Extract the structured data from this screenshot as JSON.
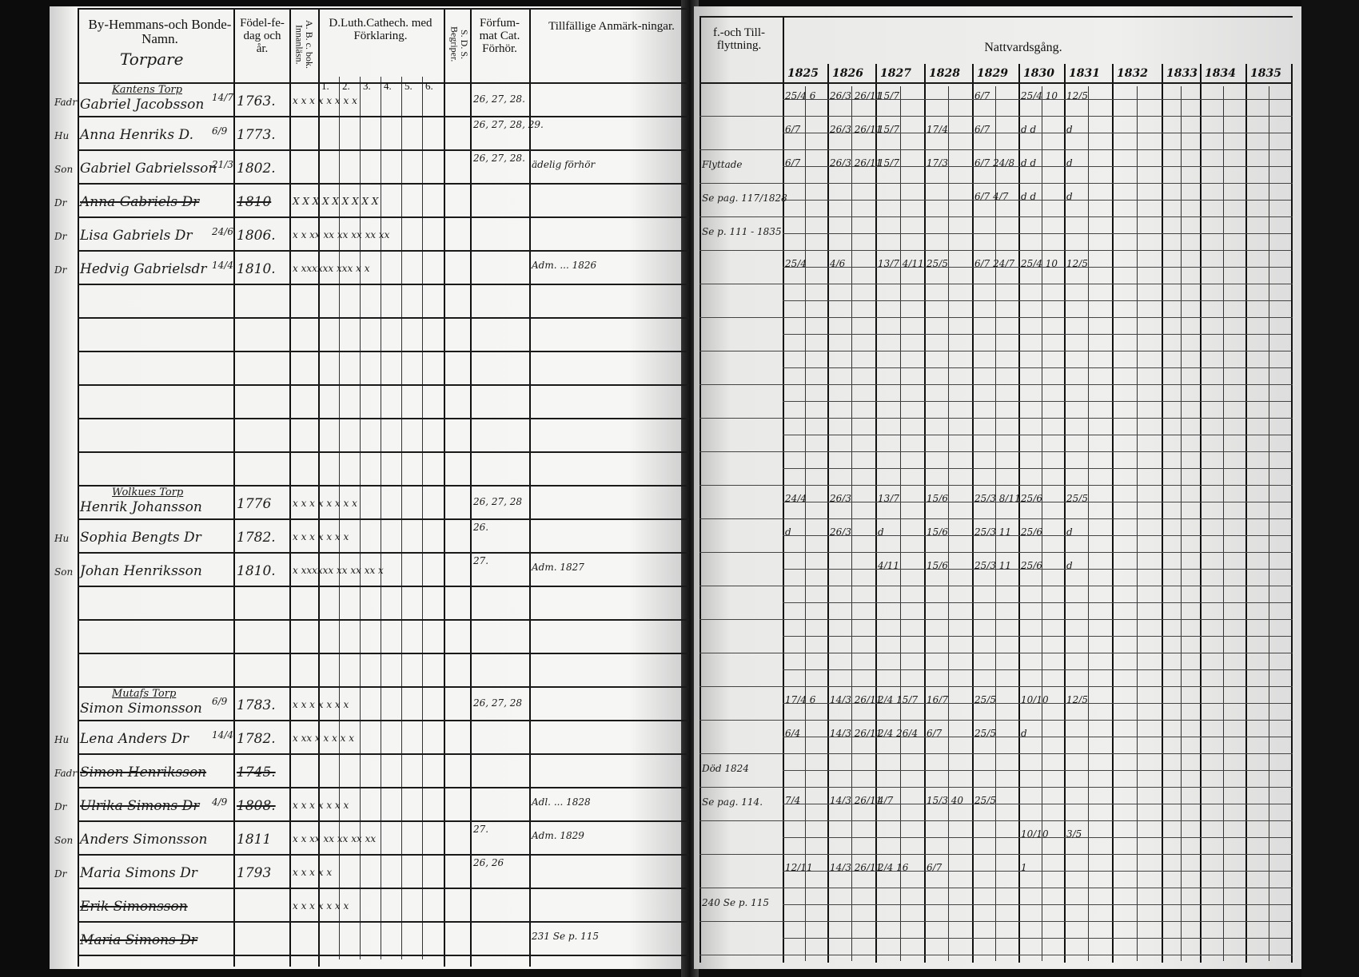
{
  "headers": {
    "name": "By-Hemmans-och Bonde-Namn.",
    "name_note": "Torpare",
    "birth": "Födel-fe-dag och år.",
    "abc": "A. B. c. bok. Innanläsn.",
    "catechism": "D.Luth.Cathech. med Förklaring.",
    "catechism_parts": [
      "1.",
      "2.",
      "3.",
      "4.",
      "5.",
      "6."
    ],
    "sds": "S. D. S. Begriper.",
    "forhor": "Förfum-mat Cat. Förhör.",
    "remarks": "Tillfällige Anmärk-ningar.",
    "moves": "f.-och Till-flyttning.",
    "communion": "Nattvardsgång."
  },
  "years": [
    "1825",
    "1826",
    "1827",
    "1828",
    "1829",
    "1830",
    "1831",
    "1832",
    "1833",
    "1834",
    "1835"
  ],
  "rows": [
    {
      "section": "Kantens Torp",
      "prefix": "Fadr",
      "name": "Gabriel Jacobsson",
      "day": "14/7",
      "year": "1763.",
      "marks": "x x  x  x  x  x  x  x",
      "forhor": "26, 27, 28.",
      "remarks": "",
      "moves": "",
      "communion": [
        "25/4 6",
        "26/3 26/11",
        "15/7",
        "",
        "6/7",
        "25/4 10",
        "12/5"
      ],
      "struck": false
    },
    {
      "section": "",
      "prefix": "Hu",
      "name": "Anna Henriks D.",
      "day": "6/9",
      "year": "1773.",
      "marks": "",
      "forhor": "26, 27, 28, 29.",
      "remarks": "",
      "moves": "",
      "communion": [
        "6/7",
        "26/3 26/11",
        "15/7",
        "17/4",
        "6/7",
        "d d",
        "d"
      ],
      "struck": false
    },
    {
      "section": "",
      "prefix": "Son",
      "name": "Gabriel Gabrielsson",
      "day": "21/3",
      "year": "1802.",
      "marks": "",
      "forhor": "26, 27, 28.",
      "remarks": "ädelig förhör",
      "moves": "Flyttade",
      "communion": [
        "6/7",
        "26/3 26/11",
        "15/7",
        "17/3",
        "6/7 24/8",
        "d d",
        "d"
      ],
      "struck": false
    },
    {
      "section": "",
      "prefix": "Dr",
      "name": "Anna Gabriels Dr",
      "day": "",
      "year": "1810",
      "marks": "X X  X X X  X X  X  X",
      "forhor": "",
      "remarks": "",
      "moves": "Se pag. 117/1828",
      "communion": [
        "",
        "",
        "",
        "",
        "6/7 4/7",
        "d d",
        "d"
      ],
      "struck": true
    },
    {
      "section": "",
      "prefix": "Dr",
      "name": "Lisa Gabriels Dr",
      "day": "24/6",
      "year": "1806.",
      "marks": "x x  xx xx xx xx xx xx",
      "forhor": "",
      "remarks": "",
      "moves": "Se p. 111 - 1835",
      "communion": [
        "",
        "",
        "",
        "",
        "",
        "",
        ""
      ],
      "struck": false
    },
    {
      "section": "",
      "prefix": "Dr",
      "name": "Hedvig Gabrielsdr",
      "day": "14/4",
      "year": "1810.",
      "marks": "x xxxxxx xxx x x",
      "forhor": "",
      "remarks": "Adm. ... 1826",
      "moves": "",
      "communion": [
        "25/4",
        "4/6",
        "13/7 4/11",
        "25/5",
        "6/7 24/7",
        "25/4 10",
        "12/5"
      ],
      "struck": false
    },
    {
      "section": "",
      "prefix": "",
      "name": "",
      "day": "",
      "year": "",
      "marks": "",
      "forhor": "",
      "remarks": "",
      "moves": "",
      "communion": [],
      "struck": false
    },
    {
      "section": "",
      "prefix": "",
      "name": "",
      "day": "",
      "year": "",
      "marks": "",
      "forhor": "",
      "remarks": "",
      "moves": "",
      "communion": [],
      "struck": false
    },
    {
      "section": "",
      "prefix": "",
      "name": "",
      "day": "",
      "year": "",
      "marks": "",
      "forhor": "",
      "remarks": "",
      "moves": "",
      "communion": [],
      "struck": false
    },
    {
      "section": "",
      "prefix": "",
      "name": "",
      "day": "",
      "year": "",
      "marks": "",
      "forhor": "",
      "remarks": "",
      "moves": "",
      "communion": [],
      "struck": false
    },
    {
      "section": "",
      "prefix": "",
      "name": "",
      "day": "",
      "year": "",
      "marks": "",
      "forhor": "",
      "remarks": "",
      "moves": "",
      "communion": [],
      "struck": false
    },
    {
      "section": "",
      "prefix": "",
      "name": "",
      "day": "",
      "year": "",
      "marks": "",
      "forhor": "",
      "remarks": "",
      "moves": "",
      "communion": [],
      "struck": false
    },
    {
      "section": "Wolkues Torp",
      "prefix": "",
      "name": "Henrik Johansson",
      "day": "",
      "year": "1776",
      "marks": "x x x  x  x  x  x  x",
      "forhor": "26, 27, 28",
      "remarks": "",
      "moves": "",
      "communion": [
        "24/4",
        "26/3",
        "13/7",
        "15/6",
        "25/3 8/11",
        "25/6",
        "25/5"
      ],
      "struck": false
    },
    {
      "section": "",
      "prefix": "Hu",
      "name": "Sophia Bengts Dr",
      "day": "",
      "year": "1782.",
      "marks": "x x  x  x  x  x  x",
      "forhor": "26.",
      "remarks": "",
      "moves": "",
      "communion": [
        "d",
        "26/3",
        "d",
        "15/6",
        "25/3 11",
        "25/6",
        "d"
      ],
      "struck": false
    },
    {
      "section": "",
      "prefix": "Son",
      "name": "Johan Henriksson",
      "day": "",
      "year": "1810.",
      "marks": "x xxxxxx xx xx xx x",
      "forhor": "27.",
      "remarks": "Adm. 1827",
      "moves": "",
      "communion": [
        "",
        "",
        "4/11",
        "15/6",
        "25/3 11",
        "25/6",
        "d"
      ],
      "struck": false
    },
    {
      "section": "",
      "prefix": "",
      "name": "",
      "day": "",
      "year": "",
      "marks": "",
      "forhor": "",
      "remarks": "",
      "moves": "",
      "communion": [],
      "struck": false
    },
    {
      "section": "",
      "prefix": "",
      "name": "",
      "day": "",
      "year": "",
      "marks": "",
      "forhor": "",
      "remarks": "",
      "moves": "",
      "communion": [],
      "struck": false
    },
    {
      "section": "",
      "prefix": "",
      "name": "",
      "day": "",
      "year": "",
      "marks": "",
      "forhor": "",
      "remarks": "",
      "moves": "",
      "communion": [],
      "struck": false
    },
    {
      "section": "Mutafs Torp",
      "prefix": "",
      "name": "Simon Simonsson",
      "day": "6/9",
      "year": "1783.",
      "marks": "x x x  x  x  x  x",
      "forhor": "26, 27, 28",
      "remarks": "",
      "moves": "",
      "communion": [
        "17/4 6",
        "14/3 26/11",
        "2/4 15/7",
        "16/7",
        "25/5",
        "10/10",
        "12/5"
      ],
      "struck": false
    },
    {
      "section": "",
      "prefix": "Hu",
      "name": "Lena Anders Dr",
      "day": "14/4",
      "year": "1782.",
      "marks": "x xx x x x x x",
      "forhor": "",
      "remarks": "",
      "moves": "",
      "communion": [
        "6/4",
        "14/3 26/11",
        "2/4 26/4",
        "6/7",
        "25/5",
        "d",
        ""
      ],
      "struck": false
    },
    {
      "section": "",
      "prefix": "Fadr",
      "name": "Simon Henriksson",
      "day": "",
      "year": "1745.",
      "marks": "",
      "forhor": "",
      "remarks": "",
      "moves": "Död 1824",
      "communion": [],
      "struck": true
    },
    {
      "section": "",
      "prefix": "Dr",
      "name": "Ulrika Simons Dr",
      "day": "4/9",
      "year": "1808.",
      "marks": "x x x x x x x",
      "forhor": "",
      "remarks": "Adl. ... 1828",
      "moves": "Se pag. 114.",
      "communion": [
        "7/4",
        "14/3 26/11",
        "4/7",
        "15/3 40",
        "25/5",
        "",
        ""
      ],
      "struck": true
    },
    {
      "section": "",
      "prefix": "Son",
      "name": "Anders Simonsson",
      "day": "",
      "year": "1811",
      "marks": "x x  xx xx xx xx xx",
      "forhor": "27.",
      "remarks": "Adm. 1829",
      "moves": "",
      "communion": [
        "",
        "",
        "",
        "",
        "",
        "10/10",
        "3/5"
      ],
      "struck": false
    },
    {
      "section": "",
      "prefix": "Dr",
      "name": "Maria Simons Dr",
      "day": "",
      "year": "1793",
      "marks": "x  x x x x",
      "forhor": "26, 26",
      "remarks": "",
      "moves": "",
      "communion": [
        "12/11",
        "14/3 26/11",
        "2/4 16",
        "6/7",
        "",
        "1",
        ""
      ],
      "struck": false
    },
    {
      "section": "",
      "prefix": "",
      "name": "Erik Simonsson",
      "day": "",
      "year": "",
      "marks": "x x x x x x x",
      "forhor": "",
      "remarks": "",
      "moves": "240 Se p. 115",
      "communion": [],
      "struck": true
    },
    {
      "section": "",
      "prefix": "",
      "name": "Maria Simons Dr",
      "day": "",
      "year": "",
      "marks": "",
      "forhor": "",
      "remarks": "231 Se p. 115",
      "moves": "",
      "communion": [],
      "struck": true
    }
  ]
}
